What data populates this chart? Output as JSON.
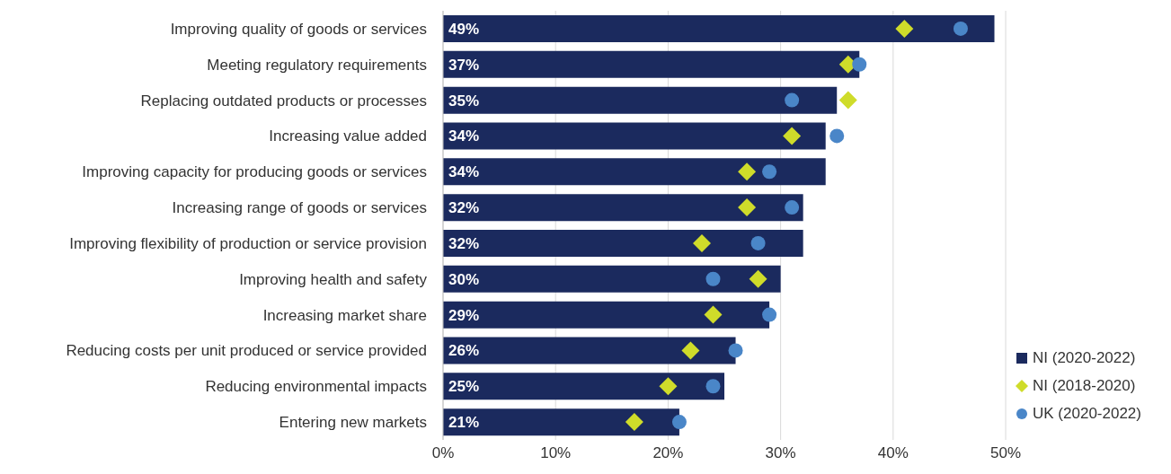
{
  "chart_data": {
    "type": "bar",
    "orientation": "horizontal",
    "categories": [
      "Improving quality of goods or services",
      "Meeting regulatory requirements",
      "Replacing outdated products or processes",
      "Increasing value added",
      "Improving capacity for producing goods or services",
      "Increasing range of goods or services",
      "Improving flexibility of production or service provision",
      "Improving health and safety",
      "Increasing market share",
      "Reducing costs per unit produced or service provided",
      "Reducing environmental impacts",
      "Entering new markets"
    ],
    "series": [
      {
        "name": "NI (2020-2022)",
        "color": "#1b2a5e",
        "values": [
          49,
          37,
          35,
          34,
          34,
          32,
          32,
          30,
          29,
          26,
          25,
          21
        ],
        "value_labels": [
          "49%",
          "37%",
          "35%",
          "34%",
          "34%",
          "32%",
          "32%",
          "30%",
          "29%",
          "26%",
          "25%",
          "21%"
        ]
      },
      {
        "name": "NI (2018-2020)",
        "type": "scatter",
        "marker": "diamond",
        "color": "#cfdc2a",
        "values": [
          41,
          36,
          36,
          31,
          27,
          27,
          23,
          28,
          24,
          22,
          20,
          17
        ]
      },
      {
        "name": "UK (2020-2022)",
        "type": "scatter",
        "marker": "circle",
        "color": "#4a86c8",
        "values": [
          46,
          37,
          31,
          35,
          29,
          31,
          28,
          24,
          29,
          26,
          24,
          21
        ]
      }
    ],
    "xlim": [
      0,
      50
    ],
    "xticks": [
      {
        "value": 0,
        "label": "0%"
      },
      {
        "value": 10,
        "label": "10%"
      },
      {
        "value": 20,
        "label": "20%"
      },
      {
        "value": 30,
        "label": "30%"
      },
      {
        "value": 40,
        "label": "40%"
      },
      {
        "value": 50,
        "label": "50%"
      }
    ],
    "grid": "x",
    "legend": "bottom right"
  }
}
